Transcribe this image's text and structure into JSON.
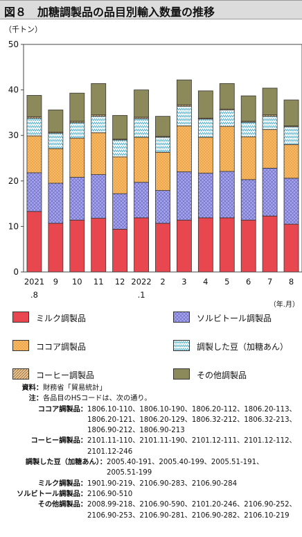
{
  "title": "図８　加糖調製品の品目別輸入数量の推移",
  "chart_data": {
    "type": "bar",
    "stacked": true,
    "y_unit": "（千トン）",
    "x_unit": "（年.月）",
    "ylim": [
      0,
      50
    ],
    "yticks": [
      0,
      10,
      20,
      30,
      40,
      50
    ],
    "categories": [
      "2021 .8",
      "9",
      "10",
      "11",
      "12",
      "2022 .1",
      "2",
      "3",
      "4",
      "5",
      "6",
      "7",
      "8"
    ],
    "category_lines": [
      [
        "2021",
        ".8"
      ],
      [
        "9"
      ],
      [
        "10"
      ],
      [
        "11"
      ],
      [
        "12"
      ],
      [
        "2022",
        ".1"
      ],
      [
        "2"
      ],
      [
        "3"
      ],
      [
        "4"
      ],
      [
        "5"
      ],
      [
        "6"
      ],
      [
        "7"
      ],
      [
        "8"
      ]
    ],
    "series": [
      {
        "name": "ミルク調製品",
        "color": "#e8474f",
        "values": [
          13.3,
          10.7,
          11.4,
          11.8,
          9.4,
          11.9,
          10.7,
          11.4,
          11.9,
          11.9,
          11.4,
          12.3,
          10.5
        ]
      },
      {
        "name": "ソルビトール調製品",
        "color": "#9f9ee6",
        "values": [
          8.5,
          8.8,
          9.4,
          9.6,
          7.8,
          7.8,
          7.2,
          10.6,
          9.8,
          10.2,
          8.9,
          10.5,
          10.1
        ]
      },
      {
        "name": "ココア調製品",
        "color": "#f7b65c",
        "values": [
          8.1,
          7.6,
          8.6,
          9.2,
          8.1,
          9.9,
          8.4,
          10.1,
          7.9,
          9.9,
          9.4,
          8.5,
          7.4
        ]
      },
      {
        "name": "調製した豆（加糖あん）",
        "color": "#cfeef5",
        "values": [
          3.9,
          3.4,
          3.4,
          3.6,
          3.7,
          4.1,
          3.3,
          4.3,
          4.0,
          3.6,
          3.2,
          2.9,
          3.9
        ]
      },
      {
        "name": "コーヒー調製品",
        "color": "#c9955a",
        "values": [
          0.3,
          0.2,
          0.3,
          0.3,
          0.2,
          0.3,
          0.2,
          0.3,
          0.2,
          0.2,
          0.2,
          0.3,
          0.2
        ]
      },
      {
        "name": "その他調製品",
        "color": "#8c8a5a",
        "values": [
          4.7,
          4.9,
          6.2,
          6.9,
          5.2,
          6.0,
          4.4,
          5.5,
          6.0,
          5.6,
          5.6,
          5.9,
          5.7
        ]
      }
    ],
    "grid": false,
    "legend_position": "bottom"
  },
  "legend": [
    {
      "label": "ミルク調製品",
      "color": "#e8474f",
      "pattern": "solid"
    },
    {
      "label": "ソルビトール調製品",
      "color": "#9f9ee6",
      "pattern": "crosshatch"
    },
    {
      "label": "ココア調製品",
      "color": "#f7b65c",
      "pattern": "dots"
    },
    {
      "label": "調製した豆（加糖あん）",
      "color": "#cfeef5",
      "pattern": "zigzag"
    },
    {
      "label": "コーヒー調製品",
      "color": "#c9955a",
      "pattern": "diagonal"
    },
    {
      "label": "その他調製品",
      "color": "#8c8a5a",
      "pattern": "solid"
    }
  ],
  "notes": [
    {
      "k": "資料：",
      "v": "財務省「貿易統計」"
    },
    {
      "k": "注：",
      "v": "各品目のHSコードは、次の通り。"
    },
    {
      "k": "ココア調製品：",
      "v": "1806.10-110、1806.10-190、1806.20-112、1806.20-113、"
    },
    {
      "k": "",
      "v": "1806.20-121、1806.20-129、1806.32-212、1806.32-213、"
    },
    {
      "k": "",
      "v": "1806.90-212、1806.90-213"
    },
    {
      "k": "コーヒー調製品：",
      "v": "2101.11-110、2101.11-190、2101.12-111、2101.12-112、"
    },
    {
      "k": "",
      "v": "2101.12-246"
    },
    {
      "k": "調製した豆（加糖あん）：",
      "v": "2005.40-191、2005.40-199、2005.51-191、"
    },
    {
      "k": "",
      "v": "2005.51-199"
    },
    {
      "k": "ミルク調製品：",
      "v": "1901.90-219、2106.90-283、2106.90-284"
    },
    {
      "k": "ソルビトール調製品：",
      "v": "2106.90-510"
    },
    {
      "k": "その他調製品：",
      "v": "2008.99-218、2106.90-590、2101.20-246、2106.90-252、"
    },
    {
      "k": "",
      "v": "2106.90-253、2106.90-281、2106.90-282、2106.10-219"
    }
  ]
}
